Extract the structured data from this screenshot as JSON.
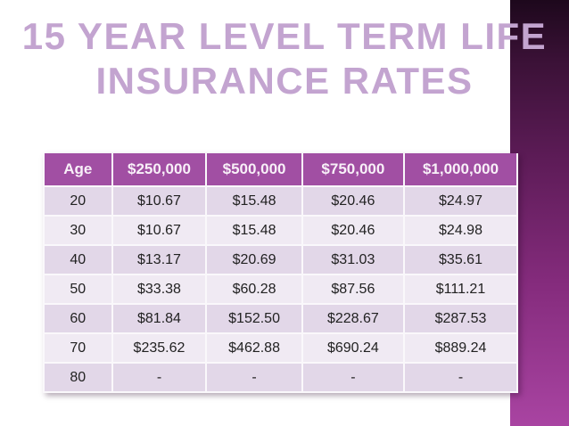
{
  "slide": {
    "title_line1": "15 YEAR LEVEL TERM LIFE",
    "title_line2": "INSURANCE RATES",
    "colors": {
      "title_text": "#c3a4d0",
      "header_bg": "#a14fa3",
      "header_text": "#f8f0f8",
      "row_dark": "#e2d7e8",
      "row_light": "#f0eaf3",
      "cell_border": "#faf8fb",
      "bar_gradient_top": "#1d081c",
      "bar_gradient_bottom": "#a944a2",
      "background": "#ffffff"
    }
  },
  "table": {
    "columns": [
      "Age",
      "$250,000",
      "$500,000",
      "$750,000",
      "$1,000,000"
    ],
    "rows": [
      [
        "20",
        "$10.67",
        "$15.48",
        "$20.46",
        "$24.97"
      ],
      [
        "30",
        "$10.67",
        "$15.48",
        "$20.46",
        "$24.98"
      ],
      [
        "40",
        "$13.17",
        "$20.69",
        "$31.03",
        "$35.61"
      ],
      [
        "50",
        "$33.38",
        "$60.28",
        "$87.56",
        "$111.21"
      ],
      [
        "60",
        "$81.84",
        "$152.50",
        "$228.67",
        "$287.53"
      ],
      [
        "70",
        "$235.62",
        "$462.88",
        "$690.24",
        "$889.24"
      ],
      [
        "80",
        "-",
        "-",
        "-",
        "-"
      ]
    ]
  }
}
